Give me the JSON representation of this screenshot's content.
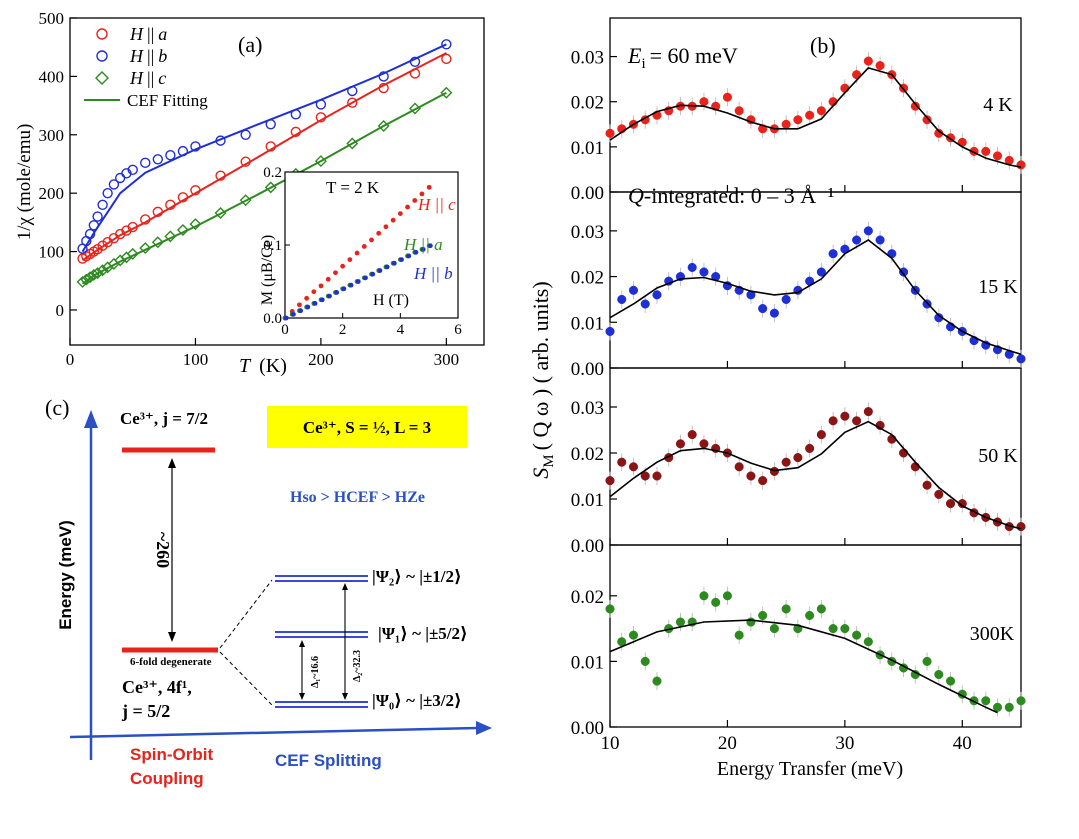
{
  "panel_a": {
    "label": "(a)",
    "ylabel": "1/χ (mole/emu)",
    "xlabel_italic": "T",
    "xlabel_unit": "(K)",
    "legend": [
      {
        "prefix": "H",
        "sym": "||",
        "suffix": "a",
        "color": "#e8231b",
        "marker": "circle"
      },
      {
        "prefix": "H",
        "sym": "||",
        "suffix": "b",
        "color": "#1f2fd6",
        "marker": "circle"
      },
      {
        "prefix": "H",
        "sym": "||",
        "suffix": "c",
        "color": "#2d8a1f",
        "marker": "diamond"
      },
      {
        "text": "CEF Fitting",
        "color": "#2d8a1f",
        "marker": "line"
      }
    ],
    "xticks": [
      "0",
      "100",
      "200",
      "300"
    ],
    "yticks": [
      "0",
      "100",
      "200",
      "300",
      "400",
      "500"
    ],
    "inset": {
      "title": "T = 2 K",
      "ylabel": "M (μB/Ce)",
      "xlabel": "H (T)",
      "xticks": [
        "0",
        "2",
        "4",
        "6"
      ],
      "yticks": [
        "0.0",
        "0.1",
        "0.2"
      ],
      "series_labels": [
        "H || c",
        "H || a",
        "H || b"
      ]
    }
  },
  "panel_b": {
    "label": "(b)",
    "ei": "E",
    "ei_sub": "i",
    "ei_value": "= 60 meV",
    "q_text": "-integrated: 0 – 3 Å⁻¹",
    "q_italic": "Q",
    "ylabel": "S",
    "ylabel_sub": "M",
    "ylabel_rest": "( Q ω ) ( arb. units)",
    "xlabel": "Energy Transfer (meV)",
    "xticks": [
      "10",
      "20",
      "30",
      "40"
    ],
    "subplot_labels": [
      "4 K",
      "15 K",
      "50 K",
      "300K"
    ],
    "yticks_top": [
      "0.00",
      "0.01",
      "0.02",
      "0.03"
    ],
    "yticks_bottom": [
      "0.00",
      "0.01",
      "0.02"
    ]
  },
  "panel_c": {
    "label": "(c)",
    "yaxis": "Energy (meV)",
    "top_level": "Ce³⁺, j = 7/2",
    "box_text": "Ce³⁺, S = ½, L = 3",
    "hierarchy": "Hso > HCEF > HZe",
    "gap": "~260",
    "degenerate": "6-fold degenerate",
    "ground_line1": "Ce³⁺, 4f¹,",
    "ground_line2": "j = 5/2",
    "psi2": "|Ψ₂⟩ ~ |±1/2⟩",
    "psi1": "|Ψ₁⟩ ~ |±5/2⟩",
    "psi0": "|Ψ₀⟩ ~ |±3/2⟩",
    "delta1": "Δ₁~16.6",
    "delta2": "Δ₂~32.3",
    "bottom_left_1": "Spin-Orbit",
    "bottom_left_2": "Coupling",
    "bottom_right": "CEF Splitting"
  },
  "chart_data": [
    {
      "type": "scatter",
      "panel": "a",
      "xlabel": "T (K)",
      "ylabel": "1/χ (mole/emu)",
      "xlim": [
        0,
        330
      ],
      "ylim": [
        -60,
        500
      ],
      "series": [
        {
          "name": "H || a",
          "x": [
            10,
            13,
            16,
            19,
            22,
            26,
            30,
            35,
            40,
            45,
            50,
            60,
            70,
            80,
            90,
            100,
            120,
            140,
            160,
            180,
            200,
            225,
            250,
            275,
            300
          ],
          "y": [
            88,
            92,
            96,
            100,
            104,
            110,
            116,
            123,
            130,
            136,
            142,
            155,
            168,
            180,
            193,
            205,
            230,
            254,
            280,
            305,
            330,
            355,
            380,
            405,
            430
          ]
        },
        {
          "name": "H || b",
          "x": [
            10,
            13,
            16,
            19,
            22,
            26,
            30,
            35,
            40,
            45,
            50,
            60,
            70,
            80,
            90,
            100,
            120,
            140,
            160,
            180,
            200,
            225,
            250,
            275,
            300
          ],
          "y": [
            105,
            118,
            130,
            145,
            160,
            180,
            200,
            215,
            226,
            234,
            240,
            252,
            258,
            265,
            272,
            280,
            290,
            300,
            318,
            335,
            352,
            375,
            400,
            425,
            455
          ]
        },
        {
          "name": "H || c",
          "x": [
            10,
            13,
            16,
            19,
            22,
            26,
            30,
            35,
            40,
            45,
            50,
            60,
            70,
            80,
            90,
            100,
            120,
            140,
            160,
            180,
            200,
            225,
            250,
            275,
            300
          ],
          "y": [
            48,
            52,
            56,
            60,
            63,
            68,
            73,
            79,
            85,
            90,
            96,
            106,
            116,
            126,
            137,
            147,
            166,
            188,
            210,
            233,
            255,
            285,
            315,
            345,
            372
          ]
        }
      ],
      "fits": [
        {
          "name": "fit a",
          "x": [
            10,
            20,
            40,
            60,
            100,
            150,
            200,
            250,
            300
          ],
          "y": [
            85,
            100,
            128,
            150,
            200,
            262,
            325,
            385,
            440
          ]
        },
        {
          "name": "fit b",
          "x": [
            10,
            20,
            40,
            60,
            100,
            150,
            200,
            250,
            300
          ],
          "y": [
            100,
            135,
            200,
            235,
            275,
            318,
            360,
            405,
            455
          ]
        },
        {
          "name": "CEF Fitting",
          "x": [
            10,
            20,
            40,
            60,
            100,
            150,
            200,
            250,
            300
          ],
          "y": [
            45,
            60,
            83,
            103,
            143,
            198,
            255,
            315,
            372
          ]
        }
      ]
    },
    {
      "type": "scatter",
      "panel": "a-inset",
      "xlabel": "H (T)",
      "ylabel": "M (μB/Ce)",
      "xlim": [
        0,
        6
      ],
      "ylim": [
        0,
        0.2
      ],
      "series": [
        {
          "name": "H || c",
          "x": [
            0,
            0.25,
            0.5,
            0.75,
            1,
            1.25,
            1.5,
            1.75,
            2,
            2.25,
            2.5,
            2.75,
            3,
            3.25,
            3.5,
            3.75,
            4,
            4.25,
            4.5,
            4.75,
            5
          ],
          "y": [
            0,
            0.009,
            0.018,
            0.027,
            0.036,
            0.044,
            0.053,
            0.062,
            0.071,
            0.08,
            0.089,
            0.098,
            0.107,
            0.116,
            0.125,
            0.134,
            0.143,
            0.152,
            0.161,
            0.17,
            0.179
          ]
        },
        {
          "name": "H || a",
          "x": [
            0,
            0.25,
            0.5,
            0.75,
            1,
            1.25,
            1.5,
            1.75,
            2,
            2.25,
            2.5,
            2.75,
            3,
            3.25,
            3.5,
            3.75,
            4,
            4.25,
            4.5,
            4.75,
            5
          ],
          "y": [
            0,
            0.005,
            0.01,
            0.015,
            0.02,
            0.025,
            0.03,
            0.035,
            0.04,
            0.045,
            0.05,
            0.055,
            0.06,
            0.065,
            0.07,
            0.075,
            0.08,
            0.085,
            0.09,
            0.094,
            0.099
          ]
        },
        {
          "name": "H || b",
          "x": [
            0,
            0.25,
            0.5,
            0.75,
            1,
            1.25,
            1.5,
            1.75,
            2,
            2.25,
            2.5,
            2.75,
            3,
            3.25,
            3.5,
            3.75,
            4,
            4.25,
            4.5,
            4.75,
            5
          ],
          "y": [
            0,
            0.005,
            0.01,
            0.015,
            0.02,
            0.025,
            0.03,
            0.035,
            0.04,
            0.045,
            0.05,
            0.055,
            0.06,
            0.065,
            0.07,
            0.075,
            0.08,
            0.085,
            0.09,
            0.094,
            0.099
          ]
        }
      ]
    },
    {
      "type": "scatter",
      "panel": "b",
      "xlabel": "Energy Transfer (meV)",
      "ylabel": "S_M (Q ω) (arb. units)",
      "xlim": [
        10,
        45
      ],
      "subplots": [
        {
          "name": "4 K",
          "color": "#e8231b",
          "ylim": [
            0,
            0.035
          ],
          "x": [
            10,
            11,
            12,
            13,
            14,
            15,
            16,
            17,
            18,
            19,
            20,
            21,
            22,
            23,
            24,
            25,
            26,
            27,
            28,
            29,
            30,
            31,
            32,
            33,
            34,
            35,
            36,
            37,
            38,
            39,
            40,
            41,
            42,
            43,
            44,
            45
          ],
          "y": [
            0.013,
            0.014,
            0.015,
            0.016,
            0.017,
            0.018,
            0.019,
            0.019,
            0.02,
            0.019,
            0.021,
            0.018,
            0.016,
            0.014,
            0.014,
            0.015,
            0.016,
            0.017,
            0.018,
            0.02,
            0.023,
            0.026,
            0.029,
            0.028,
            0.026,
            0.023,
            0.019,
            0.016,
            0.013,
            0.012,
            0.011,
            0.009,
            0.009,
            0.008,
            0.007,
            0.006
          ],
          "fit_x": [
            10,
            12,
            14,
            16,
            18,
            20,
            22,
            24,
            26,
            28,
            30,
            32,
            34,
            36,
            38,
            40,
            42,
            44,
            45
          ],
          "fit_y": [
            0.0115,
            0.015,
            0.0178,
            0.0192,
            0.019,
            0.0175,
            0.0155,
            0.014,
            0.014,
            0.0162,
            0.022,
            0.0275,
            0.026,
            0.0195,
            0.0135,
            0.01,
            0.0075,
            0.006,
            0.0055
          ]
        },
        {
          "name": "15 K",
          "color": "#1f2fd6",
          "ylim": [
            0,
            0.035
          ],
          "x": [
            10,
            11,
            12,
            13,
            14,
            15,
            16,
            17,
            18,
            19,
            20,
            21,
            22,
            23,
            24,
            25,
            26,
            27,
            28,
            29,
            30,
            31,
            32,
            33,
            34,
            35,
            36,
            37,
            38,
            39,
            40,
            41,
            42,
            43,
            44,
            45
          ],
          "y": [
            0.008,
            0.015,
            0.017,
            0.014,
            0.016,
            0.019,
            0.02,
            0.022,
            0.021,
            0.02,
            0.018,
            0.017,
            0.016,
            0.013,
            0.012,
            0.015,
            0.017,
            0.019,
            0.021,
            0.025,
            0.026,
            0.028,
            0.03,
            0.028,
            0.025,
            0.021,
            0.017,
            0.014,
            0.011,
            0.009,
            0.008,
            0.006,
            0.005,
            0.004,
            0.003,
            0.002
          ],
          "fit_x": [
            10,
            12,
            14,
            16,
            18,
            20,
            22,
            24,
            26,
            28,
            30,
            32,
            34,
            36,
            38,
            40,
            42,
            44,
            45
          ],
          "fit_y": [
            0.011,
            0.014,
            0.0175,
            0.0195,
            0.0198,
            0.0185,
            0.0168,
            0.016,
            0.0165,
            0.0195,
            0.025,
            0.028,
            0.024,
            0.017,
            0.0115,
            0.008,
            0.0055,
            0.0038,
            0.003
          ]
        },
        {
          "name": "50 K",
          "color": "#8b1414",
          "ylim": [
            0,
            0.035
          ],
          "x": [
            10,
            11,
            12,
            13,
            14,
            15,
            16,
            17,
            18,
            19,
            20,
            21,
            22,
            23,
            24,
            25,
            26,
            27,
            28,
            29,
            30,
            31,
            32,
            33,
            34,
            35,
            36,
            37,
            38,
            39,
            40,
            41,
            42,
            43,
            44,
            45
          ],
          "y": [
            0.014,
            0.018,
            0.017,
            0.015,
            0.015,
            0.019,
            0.022,
            0.024,
            0.022,
            0.021,
            0.02,
            0.017,
            0.015,
            0.014,
            0.016,
            0.018,
            0.019,
            0.021,
            0.024,
            0.027,
            0.028,
            0.027,
            0.029,
            0.026,
            0.023,
            0.02,
            0.017,
            0.013,
            0.011,
            0.009,
            0.009,
            0.007,
            0.006,
            0.005,
            0.004,
            0.004
          ],
          "fit_x": [
            10,
            12,
            14,
            16,
            18,
            20,
            22,
            24,
            26,
            28,
            30,
            32,
            34,
            36,
            38,
            40,
            42,
            44,
            45
          ],
          "fit_y": [
            0.0105,
            0.0145,
            0.018,
            0.0205,
            0.021,
            0.02,
            0.0178,
            0.0162,
            0.0168,
            0.0198,
            0.0245,
            0.0268,
            0.024,
            0.018,
            0.0125,
            0.0085,
            0.006,
            0.0042,
            0.0035
          ]
        },
        {
          "name": "300K",
          "color": "#2d8a1f",
          "ylim": [
            0,
            0.025
          ],
          "x": [
            10,
            11,
            12,
            13,
            14,
            15,
            16,
            17,
            18,
            19,
            20,
            21,
            22,
            23,
            24,
            25,
            26,
            27,
            28,
            29,
            30,
            31,
            32,
            33,
            34,
            35,
            36,
            37,
            38,
            39,
            40,
            41,
            42,
            43,
            44,
            45
          ],
          "y": [
            0.018,
            0.013,
            0.014,
            0.01,
            0.007,
            0.015,
            0.016,
            0.016,
            0.02,
            0.019,
            0.02,
            0.014,
            0.016,
            0.017,
            0.015,
            0.018,
            0.015,
            0.017,
            0.018,
            0.015,
            0.015,
            0.014,
            0.013,
            0.011,
            0.01,
            0.009,
            0.008,
            0.01,
            0.008,
            0.007,
            0.005,
            0.004,
            0.004,
            0.003,
            0.003,
            0.004
          ],
          "fit_x": [
            10,
            14,
            18,
            22,
            26,
            30,
            34,
            38,
            42,
            43
          ],
          "fit_y": [
            0.0115,
            0.0145,
            0.016,
            0.0163,
            0.0155,
            0.0135,
            0.0102,
            0.0065,
            0.003,
            0.0022
          ]
        }
      ]
    }
  ]
}
